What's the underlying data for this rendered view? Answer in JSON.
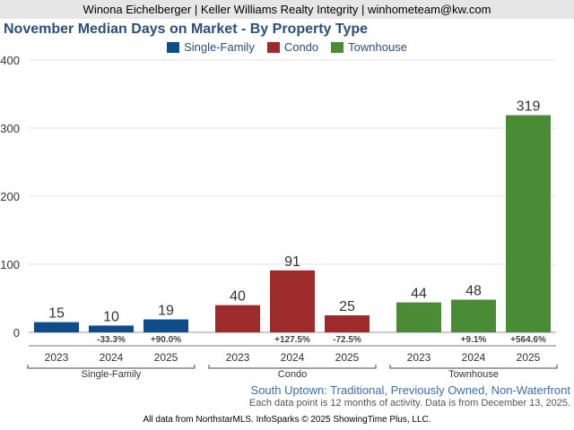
{
  "header": {
    "contact": "Winona Eichelberger | Keller Williams Realty Integrity | winhometeam@kw.com"
  },
  "chart_data": {
    "type": "bar",
    "title": "November Median Days on Market - By Property Type",
    "ylim": [
      0,
      400
    ],
    "yticks": [
      0,
      100,
      200,
      300,
      400
    ],
    "groups": [
      {
        "name": "Single-Family",
        "color": "#0f4c8a",
        "bars": [
          {
            "year": "2023",
            "value": 15,
            "change": ""
          },
          {
            "year": "2024",
            "value": 10,
            "change": "-33.3%"
          },
          {
            "year": "2025",
            "value": 19,
            "change": "+90.0%"
          }
        ]
      },
      {
        "name": "Condo",
        "color": "#9e2b2b",
        "bars": [
          {
            "year": "2023",
            "value": 40,
            "change": ""
          },
          {
            "year": "2024",
            "value": 91,
            "change": "+127.5%"
          },
          {
            "year": "2025",
            "value": 25,
            "change": "-72.5%"
          }
        ]
      },
      {
        "name": "Townhouse",
        "color": "#4a8c35",
        "bars": [
          {
            "year": "2023",
            "value": 44,
            "change": ""
          },
          {
            "year": "2024",
            "value": 48,
            "change": "+9.1%"
          },
          {
            "year": "2025",
            "value": 319,
            "change": "+564.6%"
          }
        ]
      }
    ]
  },
  "footer": {
    "area": "South Uptown: Traditional, Previously Owned, Non-Waterfront",
    "note": "Each data point is 12 months of activity. Data is from December 13, 2025.",
    "source": "All data from NorthstarMLS. InfoSparks © 2025 ShowingTime Plus, LLC."
  }
}
